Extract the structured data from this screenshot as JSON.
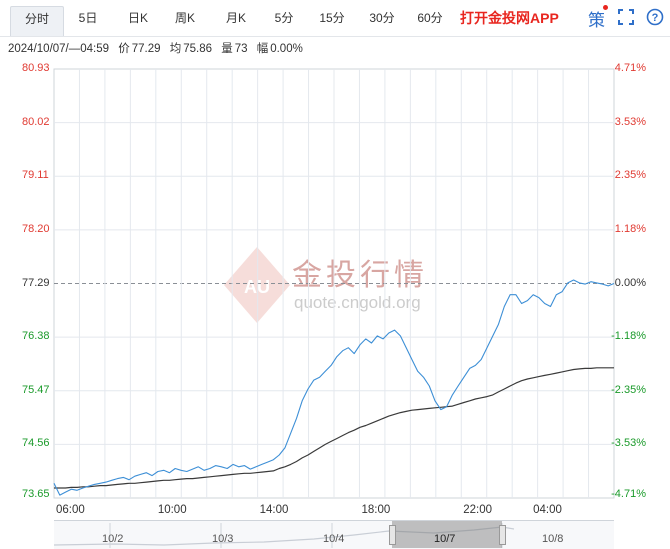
{
  "tabs": [
    {
      "label": "分时",
      "active": true
    },
    {
      "label": "5日"
    },
    {
      "label": "日K"
    },
    {
      "label": "周K"
    },
    {
      "label": "月K"
    },
    {
      "label": "5分"
    },
    {
      "label": "15分"
    },
    {
      "label": "30分"
    },
    {
      "label": "60分"
    }
  ],
  "promo": "打开金投网APP",
  "strategy": "策",
  "info": {
    "datetime": "2024/10/07/—04:59",
    "price_label": "价",
    "price": "77.29",
    "avg_label": "均",
    "avg": "75.86",
    "vol_label": "量",
    "vol": "73",
    "chg_label": "幅",
    "chg": "0.00%"
  },
  "watermark": {
    "cn": "金投行情",
    "url": "quote.cngold.org",
    "logo": "AU"
  },
  "axes": {
    "left": [
      "80.93",
      "80.02",
      "79.11",
      "78.20",
      "77.29",
      "76.38",
      "75.47",
      "74.56",
      "73.65"
    ],
    "right": [
      "4.71%",
      "3.53%",
      "2.35%",
      "1.18%",
      "0.00%",
      "-1.18%",
      "-2.35%",
      "-3.53%",
      "-4.71%"
    ],
    "x": [
      "06:00",
      "10:00",
      "14:00",
      "18:00",
      "22:00",
      "04:00"
    ]
  },
  "navigator": [
    "10/2",
    "10/3",
    "10/4",
    "10/7",
    "10/8"
  ],
  "colors": {
    "up": "#e03a32",
    "down": "#1a9a2a",
    "price": "#3d8fd6",
    "avg": "#3a3a3a",
    "grid": "#e4e8ee"
  },
  "chart_data": {
    "type": "line",
    "ylim": [
      73.65,
      80.93
    ],
    "reference": 77.29,
    "x_range": [
      "06:00",
      "04:59"
    ],
    "series": [
      {
        "values": [
          73.9,
          73.7,
          73.75,
          73.8,
          73.78,
          73.82,
          73.85,
          73.88,
          73.9,
          73.92,
          73.95,
          73.98,
          74.0,
          73.96,
          74.02,
          74.05,
          74.08,
          74.03,
          74.1,
          74.12,
          74.08,
          74.15,
          74.12,
          74.1,
          74.14,
          74.18,
          74.12,
          74.15,
          74.2,
          74.18,
          74.15,
          74.22,
          74.18,
          74.2,
          74.14,
          74.18,
          74.22,
          74.26,
          74.3,
          74.38,
          74.5,
          74.75,
          75.0,
          75.3,
          75.5,
          75.65,
          75.7,
          75.8,
          75.9,
          76.05,
          76.15,
          76.2,
          76.1,
          76.25,
          76.35,
          76.28,
          76.4,
          76.35,
          76.45,
          76.5,
          76.4,
          76.2,
          76.0,
          75.8,
          75.7,
          75.55,
          75.3,
          75.15,
          75.2,
          75.4,
          75.55,
          75.7,
          75.85,
          75.9,
          76.0,
          76.2,
          76.4,
          76.6,
          76.9,
          77.1,
          77.1,
          76.95,
          77.0,
          77.1,
          77.05,
          76.95,
          76.9,
          77.1,
          77.15,
          77.3,
          77.35,
          77.3,
          77.28,
          77.32,
          77.3,
          77.28,
          77.25,
          77.29
        ]
      },
      {
        "values": [
          73.82,
          73.82,
          73.82,
          73.83,
          73.83,
          73.84,
          73.84,
          73.85,
          73.86,
          73.86,
          73.87,
          73.88,
          73.89,
          73.9,
          73.9,
          73.91,
          73.92,
          73.93,
          73.94,
          73.95,
          73.95,
          73.96,
          73.97,
          73.98,
          73.98,
          73.99,
          74.0,
          74.01,
          74.02,
          74.03,
          74.04,
          74.05,
          74.06,
          74.07,
          74.07,
          74.08,
          74.09,
          74.1,
          74.11,
          74.15,
          74.18,
          74.22,
          74.27,
          74.33,
          74.38,
          74.44,
          74.5,
          74.56,
          74.61,
          74.66,
          74.71,
          74.76,
          74.8,
          74.85,
          74.88,
          74.92,
          74.96,
          75.0,
          75.04,
          75.07,
          75.1,
          75.12,
          75.14,
          75.15,
          75.16,
          75.17,
          75.18,
          75.19,
          75.2,
          75.21,
          75.24,
          75.27,
          75.3,
          75.33,
          75.35,
          75.37,
          75.4,
          75.45,
          75.5,
          75.55,
          75.6,
          75.64,
          75.67,
          75.69,
          75.71,
          75.73,
          75.75,
          75.77,
          75.79,
          75.81,
          75.83,
          75.84,
          75.85,
          75.85,
          75.86,
          75.86,
          75.86,
          75.86
        ]
      }
    ]
  }
}
